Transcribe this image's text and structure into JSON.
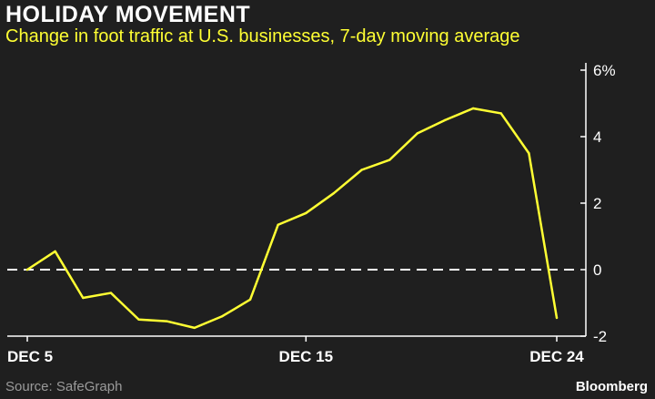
{
  "header": {
    "title": "HOLIDAY MOVEMENT",
    "subtitle": "Change in foot traffic at U.S. businesses, 7-day moving average"
  },
  "footer": {
    "source": "Source: SafeGraph",
    "brand": "Bloomberg"
  },
  "colors": {
    "background": "#1f1f1f",
    "line": "#ffff33",
    "axis": "#ffffff",
    "source_text": "#9a9a9a"
  },
  "chart_data": {
    "type": "line",
    "title": "HOLIDAY MOVEMENT",
    "subtitle": "Change in foot traffic at U.S. businesses, 7-day moving average",
    "xlabel": "",
    "ylabel": "",
    "x": [
      5,
      6,
      7,
      8,
      9,
      10,
      11,
      12,
      13,
      14,
      15,
      16,
      17,
      18,
      19,
      20,
      21,
      22,
      23,
      24
    ],
    "xlim": [
      5,
      24
    ],
    "x_ticks": [
      {
        "value": 5,
        "label": "DEC 5"
      },
      {
        "value": 15,
        "label": "DEC 15"
      },
      {
        "value": 24,
        "label": "DEC 24"
      }
    ],
    "series": [
      {
        "values": [
          0.0,
          0.55,
          -0.85,
          -0.7,
          -1.5,
          -1.55,
          -1.75,
          -1.4,
          -0.9,
          1.35,
          1.7,
          2.3,
          3.0,
          3.3,
          4.1,
          4.5,
          4.85,
          4.7,
          3.5,
          -1.45
        ]
      }
    ],
    "ylim": [
      -2,
      6
    ],
    "y_ticks": [
      {
        "value": 6,
        "label": "6%"
      },
      {
        "value": 4,
        "label": "4"
      },
      {
        "value": 2,
        "label": "2"
      },
      {
        "value": 0,
        "label": "0"
      },
      {
        "value": -2,
        "label": "-2"
      }
    ],
    "zero_line": "dashed",
    "grid": false,
    "legend": "none"
  }
}
